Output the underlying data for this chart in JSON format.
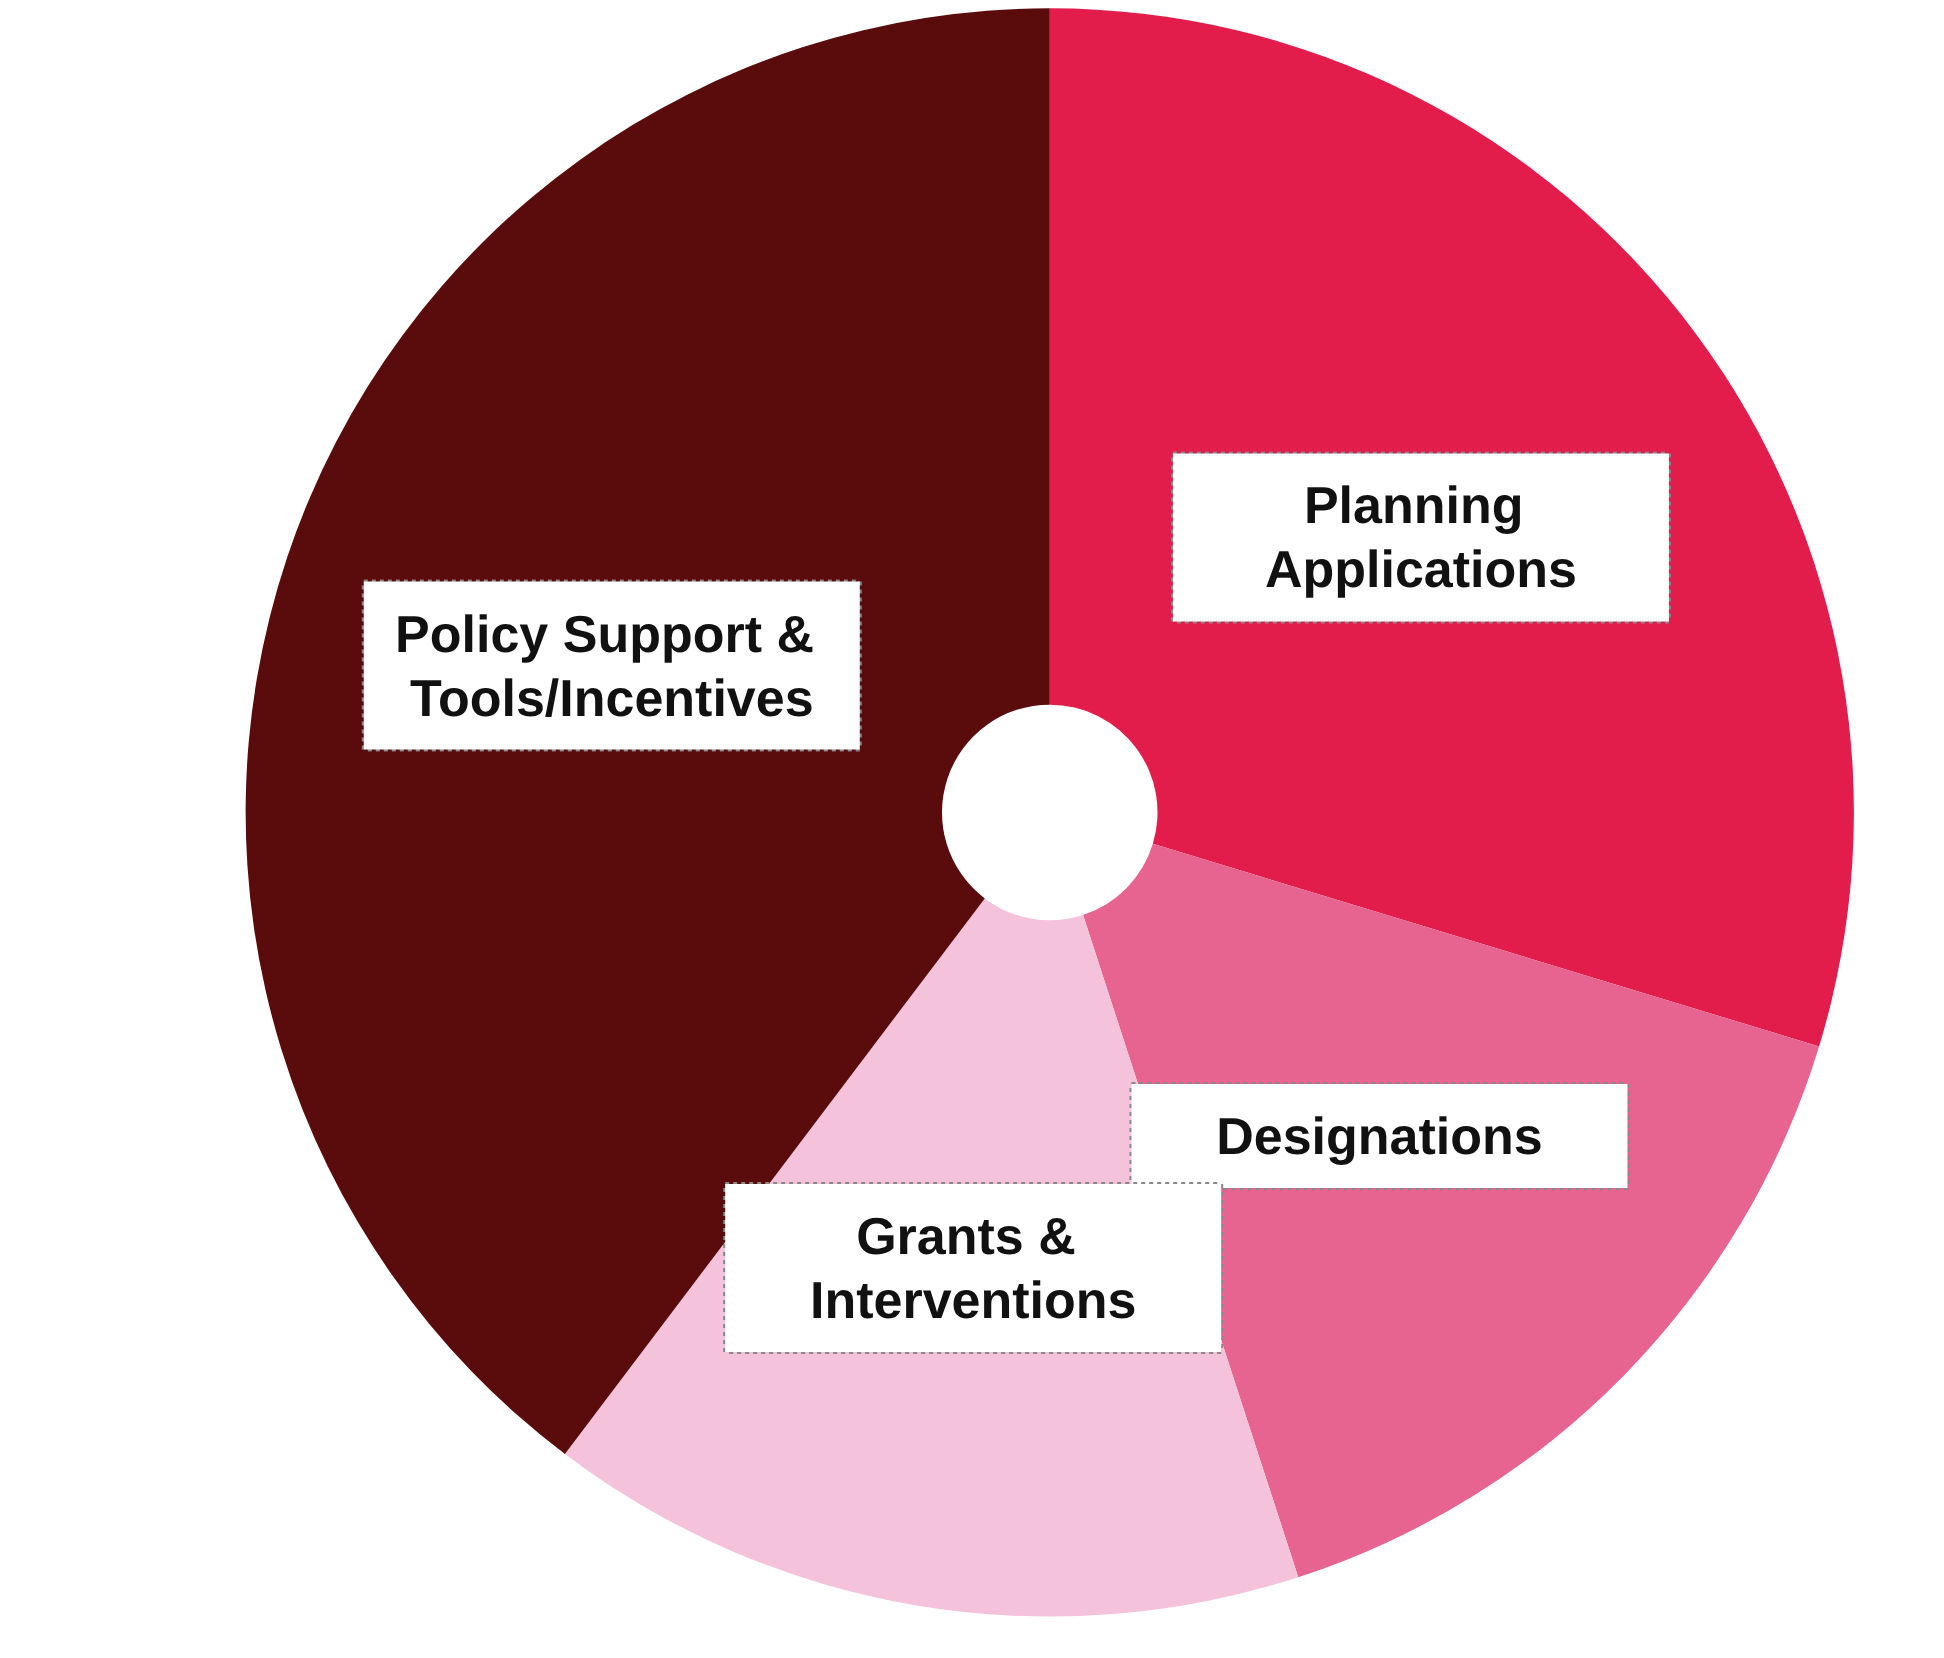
{
  "chart_data": {
    "type": "donut",
    "categories": [
      "Planning Applications",
      "Designations",
      "Grants & Interventions",
      "Policy Support & Tools/Incentives"
    ],
    "values": [
      29.7,
      15.3,
      15.3,
      39.7
    ],
    "colors": [
      "#e31d4b",
      "#e6648f",
      "#f4c2da",
      "#5a0b0b"
    ],
    "legend": false
  }
}
